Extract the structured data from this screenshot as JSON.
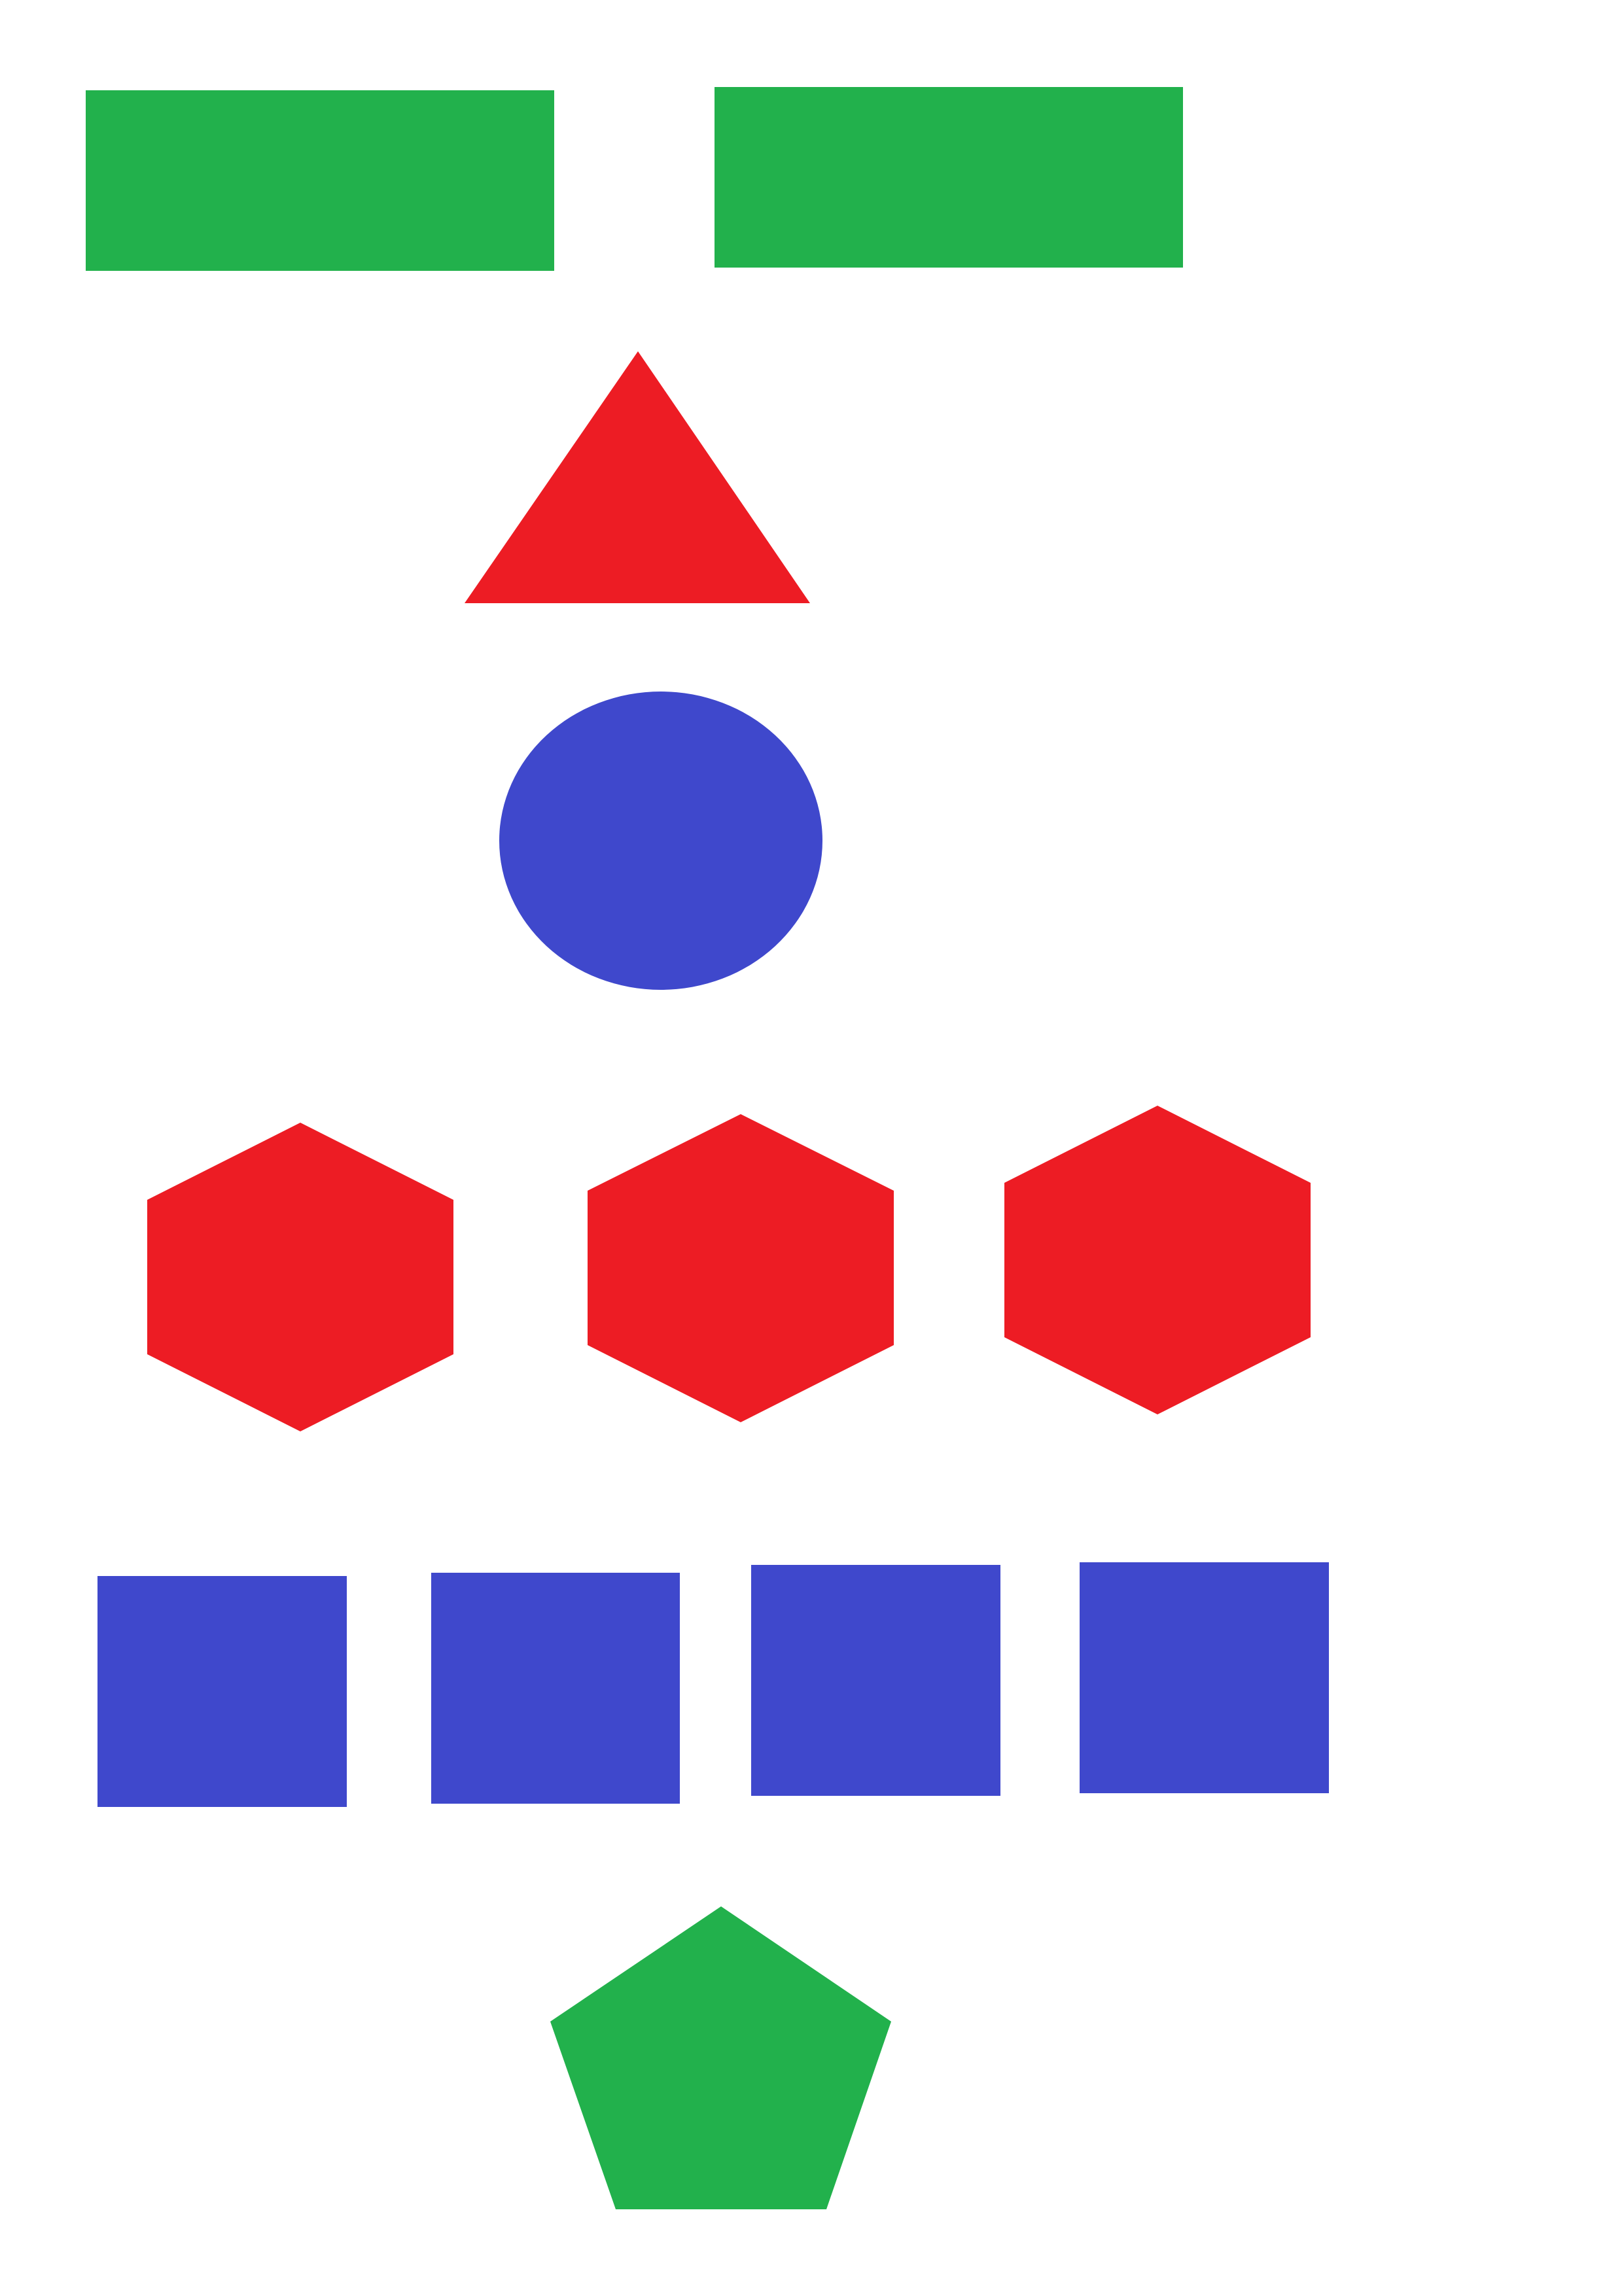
{
  "colors": {
    "background": "#ffffff",
    "green": "#22b14c",
    "red": "#ed1c24",
    "blue": "#3f48cc"
  },
  "shapes": [
    {
      "name": "green-rectangle-left",
      "kind": "rectangle",
      "color": "green"
    },
    {
      "name": "green-rectangle-right",
      "kind": "rectangle",
      "color": "green"
    },
    {
      "name": "red-triangle",
      "kind": "triangle",
      "color": "red"
    },
    {
      "name": "blue-ellipse",
      "kind": "ellipse",
      "color": "blue"
    },
    {
      "name": "red-hexagon-1",
      "kind": "hexagon",
      "color": "red"
    },
    {
      "name": "red-hexagon-2",
      "kind": "hexagon",
      "color": "red"
    },
    {
      "name": "red-hexagon-3",
      "kind": "hexagon",
      "color": "red"
    },
    {
      "name": "blue-square-1",
      "kind": "square",
      "color": "blue"
    },
    {
      "name": "blue-square-2",
      "kind": "square",
      "color": "blue"
    },
    {
      "name": "blue-square-3",
      "kind": "square",
      "color": "blue"
    },
    {
      "name": "blue-square-4",
      "kind": "square",
      "color": "blue"
    },
    {
      "name": "green-pentagon",
      "kind": "pentagon",
      "color": "green"
    }
  ]
}
